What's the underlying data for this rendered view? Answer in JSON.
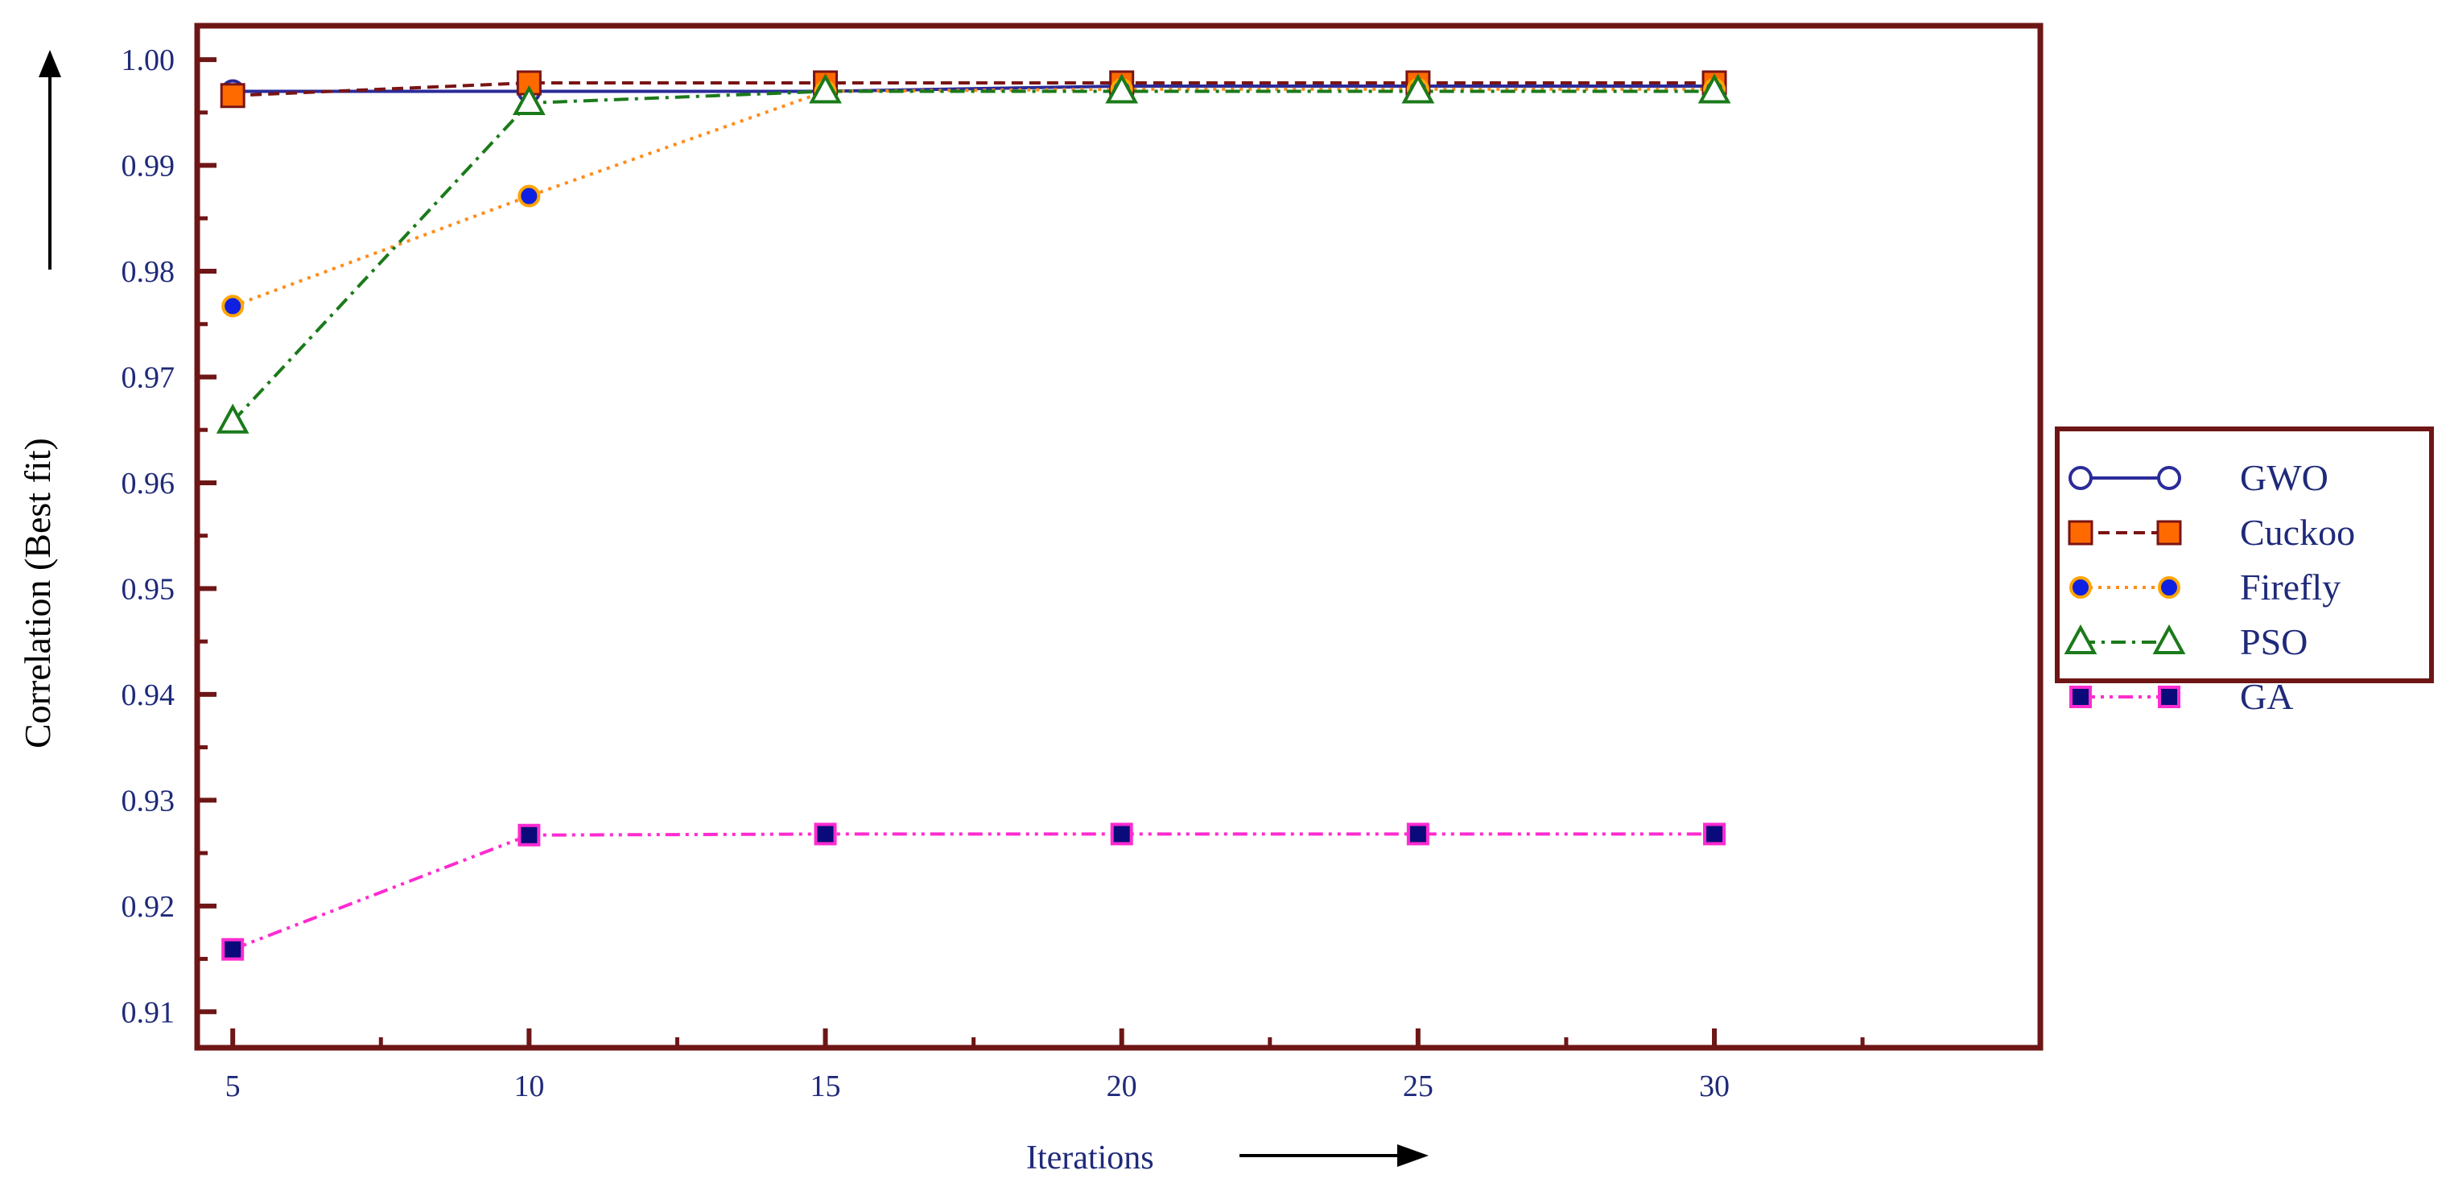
{
  "chart_data": {
    "type": "line",
    "x": [
      5,
      10,
      15,
      20,
      25,
      30
    ],
    "xticks": [
      "5",
      "10",
      "15",
      "20",
      "25",
      "30"
    ],
    "yticks": [
      "0.91",
      "0.92",
      "0.93",
      "0.94",
      "0.95",
      "0.96",
      "0.97",
      "0.98",
      "0.99",
      "1.00"
    ],
    "xlabel": "Iterations",
    "ylabel": "Correlation (Best fit)",
    "xlim": [
      4.4,
      35.5
    ],
    "ylim": [
      0.9066,
      1.0032
    ],
    "grid": false,
    "legend_position": "right",
    "series": [
      {
        "name": "GWO",
        "values": [
          0.997,
          0.997,
          0.997,
          0.9975,
          0.9975,
          0.9975
        ],
        "color": "#2b2b9a",
        "marker": "circle-open",
        "line": "solid"
      },
      {
        "name": "Cuckoo",
        "values": [
          0.9966,
          0.9978,
          0.9978,
          0.9978,
          0.9978,
          0.9978
        ],
        "color": "#7a1414",
        "marker": "square-orange",
        "line": "dashed"
      },
      {
        "name": "Firefly",
        "values": [
          0.9767,
          0.9871,
          0.997,
          0.9972,
          0.9972,
          0.9972
        ],
        "color": "#ff8c1a",
        "marker": "circle-blue",
        "line": "dotted"
      },
      {
        "name": "PSO",
        "values": [
          0.9658,
          0.9959,
          0.997,
          0.997,
          0.997,
          0.997
        ],
        "color": "#1a7a1a",
        "marker": "triangle-open",
        "line": "dashdot"
      },
      {
        "name": "GA",
        "values": [
          0.9159,
          0.9267,
          0.9268,
          0.9268,
          0.9268,
          0.9268
        ],
        "color": "#ff2bd0",
        "marker": "square-navy",
        "line": "dashdotdot"
      }
    ]
  },
  "colors": {
    "frame": "#6e1616",
    "tick_text": "#1f2a7a"
  }
}
